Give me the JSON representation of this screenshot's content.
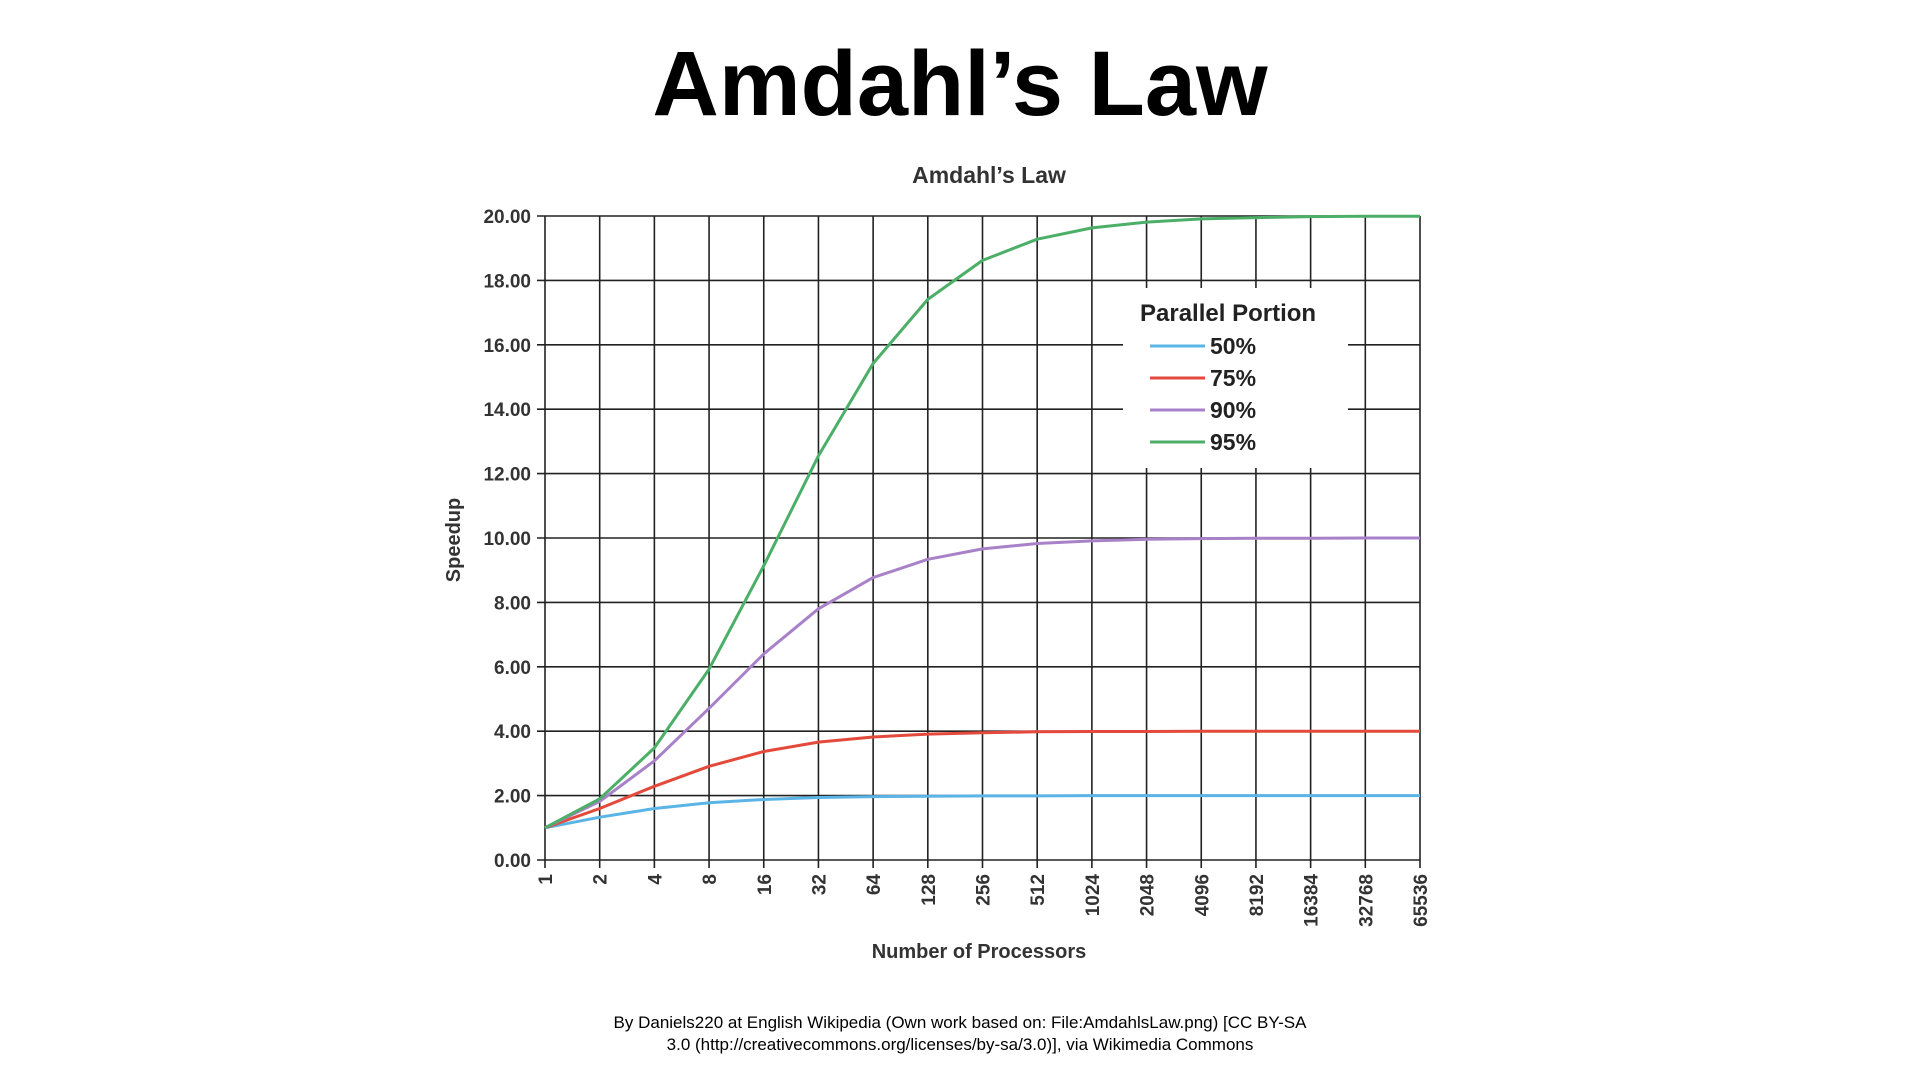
{
  "slide": {
    "title": "Amdahl’s Law",
    "credit_line1": "By Daniels220 at English Wikipedia (Own work based on: File:AmdahlsLaw.png) [CC BY-SA",
    "credit_line2": "3.0 (http://creativecommons.org/licenses/by-sa/3.0)], via Wikimedia Commons"
  },
  "chart_data": {
    "type": "line",
    "title": "Amdahl’s Law",
    "xlabel": "Number of Processors",
    "ylabel": "Speedup",
    "x_scale": "log2",
    "categories": [
      "1",
      "2",
      "4",
      "8",
      "16",
      "32",
      "64",
      "128",
      "256",
      "512",
      "1024",
      "2048",
      "4096",
      "8192",
      "16384",
      "32768",
      "65536"
    ],
    "ylim": [
      0,
      20
    ],
    "yticks": [
      "0.00",
      "2.00",
      "4.00",
      "6.00",
      "8.00",
      "10.00",
      "12.00",
      "14.00",
      "16.00",
      "18.00",
      "20.00"
    ],
    "grid": true,
    "legend": {
      "title": "Parallel Portion",
      "placement": "top-right"
    },
    "series": [
      {
        "name": "50%",
        "color": "#5ab4e5",
        "values": [
          1.0,
          1.33,
          1.6,
          1.78,
          1.88,
          1.94,
          1.97,
          1.98,
          1.99,
          1.99,
          2.0,
          2.0,
          2.0,
          2.0,
          2.0,
          2.0,
          2.0
        ]
      },
      {
        "name": "75%",
        "color": "#e34a3c",
        "values": [
          1.0,
          1.6,
          2.29,
          2.91,
          3.37,
          3.66,
          3.82,
          3.91,
          3.95,
          3.98,
          3.99,
          3.99,
          4.0,
          4.0,
          4.0,
          4.0,
          4.0
        ]
      },
      {
        "name": "90%",
        "color": "#a881c8",
        "values": [
          1.0,
          1.82,
          3.08,
          4.71,
          6.4,
          7.8,
          8.77,
          9.34,
          9.66,
          9.83,
          9.91,
          9.96,
          9.98,
          9.99,
          9.99,
          10.0,
          10.0
        ]
      },
      {
        "name": "95%",
        "color": "#4caf68",
        "values": [
          1.0,
          1.9,
          3.48,
          5.93,
          9.14,
          12.55,
          15.42,
          17.41,
          18.62,
          19.28,
          19.63,
          19.81,
          19.91,
          19.95,
          19.98,
          19.99,
          19.99
        ]
      }
    ]
  }
}
